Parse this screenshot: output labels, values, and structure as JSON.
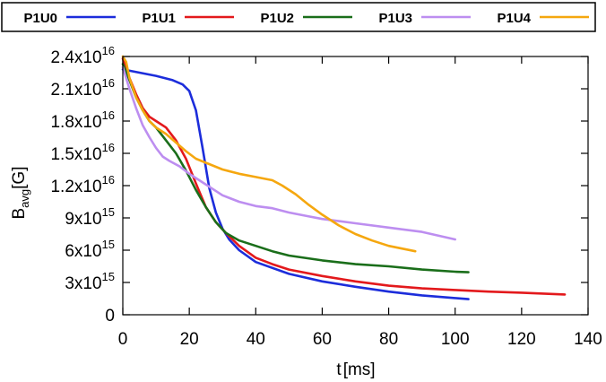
{
  "chart_data": {
    "type": "line",
    "title": "",
    "xlabel": {
      "main": "t",
      "unit": "[ms]"
    },
    "ylabel": {
      "main": "B",
      "sub": "avg",
      "unit": "[G]"
    },
    "xlim": [
      0,
      140
    ],
    "ylim": [
      0,
      2.4e+16
    ],
    "grid": false,
    "legend_position": "top",
    "x_ticks": [
      {
        "value": 0,
        "label": "0"
      },
      {
        "value": 20,
        "label": "20"
      },
      {
        "value": 40,
        "label": "40"
      },
      {
        "value": 60,
        "label": "60"
      },
      {
        "value": 80,
        "label": "80"
      },
      {
        "value": 100,
        "label": "100"
      },
      {
        "value": 120,
        "label": "120"
      },
      {
        "value": 140,
        "label": "140"
      }
    ],
    "y_ticks": [
      {
        "value": 0,
        "mantissa": "0",
        "exponent": ""
      },
      {
        "value": 3000000000000000.0,
        "mantissa": "3x10",
        "exponent": "15"
      },
      {
        "value": 6000000000000000.0,
        "mantissa": "6x10",
        "exponent": "15"
      },
      {
        "value": 9000000000000000.0,
        "mantissa": "9x10",
        "exponent": "15"
      },
      {
        "value": 1.2e+16,
        "mantissa": "1.2x10",
        "exponent": "16"
      },
      {
        "value": 1.5e+16,
        "mantissa": "1.5x10",
        "exponent": "16"
      },
      {
        "value": 1.8e+16,
        "mantissa": "1.8x10",
        "exponent": "16"
      },
      {
        "value": 2.1e+16,
        "mantissa": "2.1x10",
        "exponent": "16"
      },
      {
        "value": 2.4e+16,
        "mantissa": "2.4x10",
        "exponent": "16"
      }
    ],
    "series": [
      {
        "name": "P1U0",
        "color": "#1c2ddb",
        "x": [
          0,
          5,
          10,
          15,
          18,
          20,
          22,
          24,
          26,
          28,
          30,
          32,
          35,
          40,
          50,
          60,
          70,
          80,
          90,
          100,
          104
        ],
        "y": [
          2.28e+16,
          2.25e+16,
          2.22e+16,
          2.18e+16,
          2.14e+16,
          2.08e+16,
          1.9e+16,
          1.55e+16,
          1.18e+16,
          9500000000000000.0,
          8000000000000000.0,
          7000000000000000.0,
          6000000000000000.0,
          4900000000000000.0,
          3800000000000000.0,
          3100000000000000.0,
          2600000000000000.0,
          2150000000000000.0,
          1800000000000000.0,
          1550000000000000.0,
          1450000000000000.0
        ]
      },
      {
        "name": "P1U1",
        "color": "#e3191c",
        "x": [
          0,
          2,
          4,
          6,
          8,
          10,
          13,
          16,
          19,
          22,
          25,
          28,
          31,
          35,
          40,
          45,
          50,
          60,
          70,
          80,
          90,
          100,
          110,
          120,
          133
        ],
        "y": [
          2.38e+16,
          2.2e+16,
          2.05e+16,
          1.92e+16,
          1.84e+16,
          1.8e+16,
          1.74e+16,
          1.62e+16,
          1.45e+16,
          1.22e+16,
          1e+16,
          8600000000000000.0,
          7600000000000000.0,
          6400000000000000.0,
          5300000000000000.0,
          4700000000000000.0,
          4200000000000000.0,
          3600000000000000.0,
          3100000000000000.0,
          2700000000000000.0,
          2450000000000000.0,
          2300000000000000.0,
          2150000000000000.0,
          2050000000000000.0,
          1880000000000000.0
        ]
      },
      {
        "name": "P1U2",
        "color": "#1a6e1a",
        "x": [
          0,
          2,
          4,
          6,
          8,
          10,
          13,
          16,
          19,
          22,
          25,
          28,
          31,
          35,
          40,
          45,
          50,
          60,
          70,
          80,
          90,
          100,
          104
        ],
        "y": [
          2.33e+16,
          2.18e+16,
          2.02e+16,
          1.9e+16,
          1.8e+16,
          1.74e+16,
          1.62e+16,
          1.5e+16,
          1.34e+16,
          1.16e+16,
          1e+16,
          8600000000000000.0,
          7600000000000000.0,
          6900000000000000.0,
          6400000000000000.0,
          5900000000000000.0,
          5500000000000000.0,
          5050000000000000.0,
          4700000000000000.0,
          4500000000000000.0,
          4200000000000000.0,
          4000000000000000.0,
          3950000000000000.0
        ]
      },
      {
        "name": "P1U3",
        "color": "#bd8ef0",
        "x": [
          0,
          2,
          4,
          6,
          8,
          10,
          12,
          14,
          17,
          20,
          23,
          26,
          30,
          35,
          40,
          45,
          50,
          55,
          60,
          65,
          70,
          80,
          90,
          100
        ],
        "y": [
          2.3e+16,
          2.1e+16,
          1.92e+16,
          1.76e+16,
          1.65e+16,
          1.55e+16,
          1.47e+16,
          1.43e+16,
          1.38e+16,
          1.31e+16,
          1.25e+16,
          1.19e+16,
          1.11e+16,
          1.05e+16,
          1.01e+16,
          9900000000000000.0,
          9500000000000000.0,
          9200000000000000.0,
          8900000000000000.0,
          8700000000000000.0,
          8500000000000000.0,
          8100000000000000.0,
          7700000000000000.0,
          7000000000000000.0
        ]
      },
      {
        "name": "P1U4",
        "color": "#f5a70f",
        "x": [
          0,
          1,
          2,
          4,
          6,
          8,
          10,
          13,
          16,
          19,
          22,
          26,
          30,
          35,
          40,
          45,
          48,
          52,
          56,
          60,
          65,
          70,
          75,
          80,
          88
        ],
        "y": [
          2.4e+16,
          2.35e+16,
          2.2e+16,
          2.02e+16,
          1.9e+16,
          1.8e+16,
          1.74e+16,
          1.68e+16,
          1.6e+16,
          1.52e+16,
          1.45e+16,
          1.4e+16,
          1.35e+16,
          1.31e+16,
          1.28e+16,
          1.25e+16,
          1.2e+16,
          1.12e+16,
          1.02e+16,
          9300000000000000.0,
          8300000000000000.0,
          7500000000000000.0,
          6900000000000000.0,
          6400000000000000.0,
          5900000000000000.0
        ]
      }
    ]
  }
}
